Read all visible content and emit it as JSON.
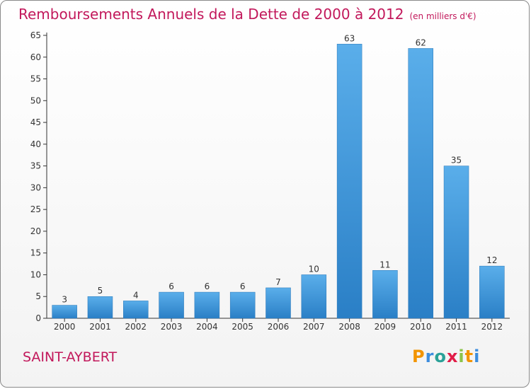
{
  "header": {
    "title": "Remboursements Annuels de la Dette de 2000 à 2012",
    "subtitle": "(en milliers d'€)"
  },
  "footer": {
    "commune": "SAINT-AYBERT",
    "logo_letters": [
      "P",
      "r",
      "o",
      "x",
      "i",
      "t",
      "i"
    ],
    "logo_colors": [
      "#f29400",
      "#3c8dde",
      "#2aa198",
      "#e11d48",
      "#8bc34a",
      "#f29400",
      "#3c8dde"
    ]
  },
  "chart_data": {
    "type": "bar",
    "title": "Remboursements Annuels de la Dette de 2000 à 2012",
    "subtitle": "(en milliers d'€)",
    "categories": [
      "2000",
      "2001",
      "2002",
      "2003",
      "2004",
      "2005",
      "2006",
      "2007",
      "2008",
      "2009",
      "2010",
      "2011",
      "2012"
    ],
    "values": [
      3,
      5,
      4,
      6,
      6,
      6,
      7,
      10,
      63,
      11,
      62,
      35,
      12
    ],
    "ylim": [
      0,
      65
    ],
    "yticks": [
      0,
      5,
      10,
      15,
      20,
      25,
      30,
      35,
      40,
      45,
      50,
      55,
      60,
      65
    ],
    "grid": false,
    "bar_color": "#2f8fd8",
    "bar_color_light": "#5aaeea"
  }
}
